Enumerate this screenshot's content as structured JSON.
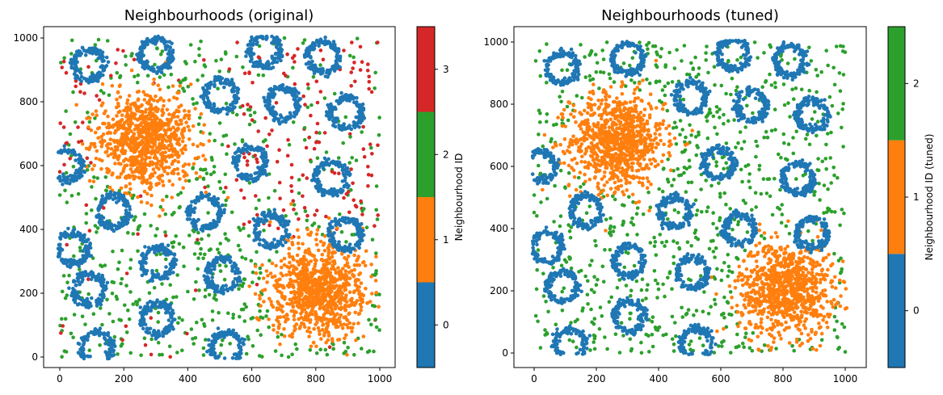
{
  "chart_data": [
    {
      "type": "scatter",
      "title": "Neighbourhoods (original)",
      "xlim": [
        -50,
        1050
      ],
      "ylim": [
        -30,
        1030
      ],
      "xticks": [
        "0",
        "200",
        "400",
        "600",
        "800",
        "1000"
      ],
      "yticks": [
        "0",
        "200",
        "400",
        "600",
        "800",
        "1000"
      ],
      "grid": false,
      "colorbar": {
        "label": "Neighbourhood ID",
        "ticks": [
          "0",
          "1",
          "2",
          "3"
        ],
        "colors": [
          "#1f77b4",
          "#ff7f0e",
          "#2ca02c",
          "#d62728"
        ]
      },
      "clusters": {
        "rings_id0": [
          [
            91,
            916
          ],
          [
            300,
            947
          ],
          [
            640,
            960
          ],
          [
            823,
            942
          ],
          [
            503,
            820
          ],
          [
            697,
            795
          ],
          [
            894,
            765
          ],
          [
            20,
            600
          ],
          [
            596,
            610
          ],
          [
            848,
            562
          ],
          [
            167,
            456
          ],
          [
            452,
            453
          ],
          [
            659,
            397
          ],
          [
            894,
            385
          ],
          [
            40,
            340
          ],
          [
            305,
            296
          ],
          [
            508,
            258
          ],
          [
            91,
            213
          ],
          [
            305,
            119
          ],
          [
            116,
            30
          ],
          [
            520,
            30
          ]
        ],
        "blobs_id1": [
          [
            268,
            683
          ],
          [
            810,
            208
          ]
        ],
        "background_ids": [
          "2",
          "3"
        ]
      }
    },
    {
      "type": "scatter",
      "title": "Neighbourhoods (tuned)",
      "xlim": [
        -70,
        1070
      ],
      "ylim": [
        -30,
        1050
      ],
      "xticks": [
        "0",
        "200",
        "400",
        "600",
        "800",
        "1000"
      ],
      "yticks": [
        "0",
        "200",
        "400",
        "600",
        "800",
        "1000"
      ],
      "grid": false,
      "colorbar": {
        "label": "Neighbourhood ID (tuned)",
        "ticks": [
          "0",
          "1",
          "2"
        ],
        "colors": [
          "#1f77b4",
          "#ff7f0e",
          "#2ca02c"
        ]
      },
      "clusters": {
        "rings_id0": [
          [
            91,
            916
          ],
          [
            300,
            947
          ],
          [
            640,
            960
          ],
          [
            823,
            942
          ],
          [
            503,
            820
          ],
          [
            697,
            795
          ],
          [
            894,
            765
          ],
          [
            20,
            600
          ],
          [
            596,
            610
          ],
          [
            848,
            562
          ],
          [
            167,
            456
          ],
          [
            452,
            453
          ],
          [
            659,
            397
          ],
          [
            894,
            385
          ],
          [
            40,
            340
          ],
          [
            305,
            296
          ],
          [
            508,
            258
          ],
          [
            91,
            213
          ],
          [
            305,
            119
          ],
          [
            116,
            30
          ],
          [
            520,
            30
          ]
        ],
        "blobs_id1": [
          [
            268,
            683
          ],
          [
            810,
            208
          ]
        ],
        "background_ids": [
          "2"
        ]
      }
    }
  ]
}
